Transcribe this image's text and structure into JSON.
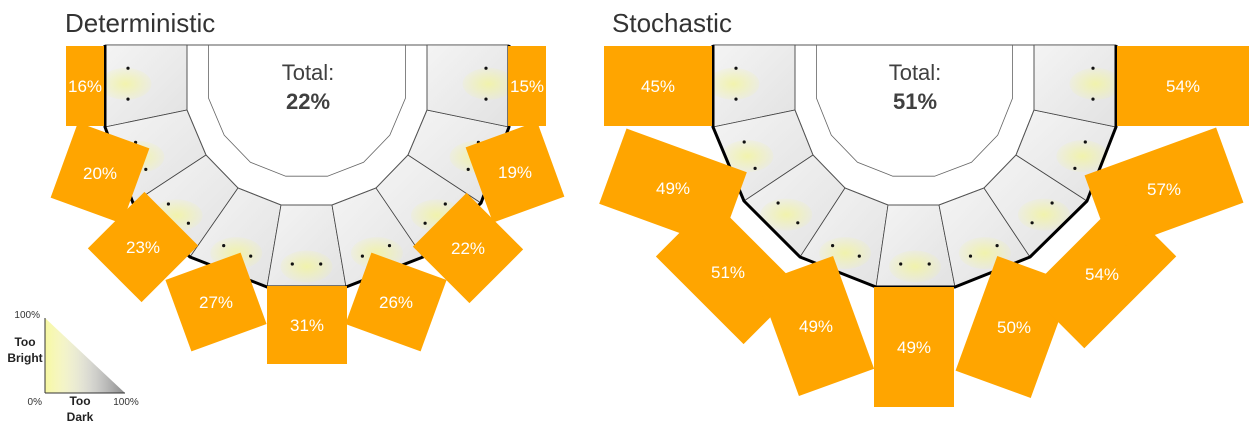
{
  "panels": [
    {
      "title": "Deterministic",
      "total_label": "Total:",
      "total_value": "22%",
      "segments": [
        "16%",
        "20%",
        "23%",
        "27%",
        "31%",
        "26%",
        "22%",
        "19%",
        "15%"
      ],
      "segment_values": [
        16,
        20,
        23,
        27,
        31,
        26,
        22,
        19,
        15
      ]
    },
    {
      "title": "Stochastic",
      "total_label": "Total:",
      "total_value": "51%",
      "segments": [
        "45%",
        "49%",
        "51%",
        "49%",
        "49%",
        "50%",
        "54%",
        "57%",
        "54%"
      ],
      "segment_values": [
        45,
        49,
        51,
        49,
        49,
        50,
        54,
        57,
        54
      ]
    }
  ],
  "legend": {
    "top_left": "100%",
    "bottom_left": "0%",
    "bottom_right": "100%",
    "too_bright": [
      "Too",
      "Bright"
    ],
    "too_dark": [
      "Too",
      "Dark"
    ]
  },
  "colors": {
    "bar": "#FFA500",
    "outline": "#000000",
    "highlight": "#F4F59A"
  }
}
